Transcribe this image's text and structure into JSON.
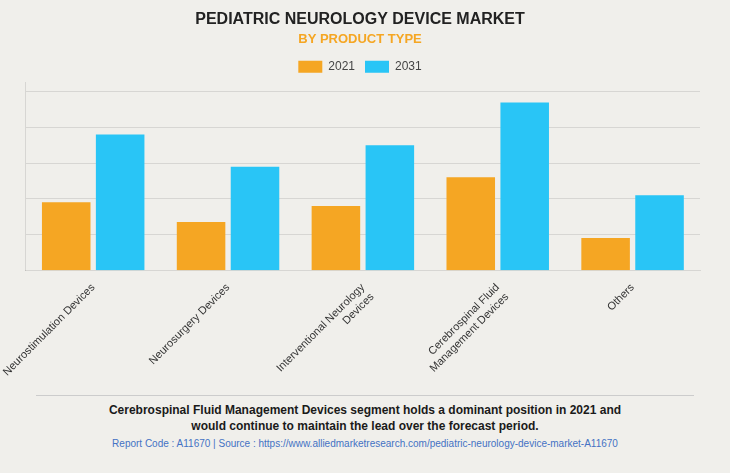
{
  "chart_data": {
    "type": "bar",
    "title": "PEDIATRIC NEUROLOGY DEVICE MARKET",
    "subtitle": "BY PRODUCT TYPE",
    "categories": [
      "Neurostimulation Devices",
      "Neurosurgery Devices",
      "Interventional Neurology\nDevices",
      "Cerebrospinal Fluid\nManagement Devices",
      "Others"
    ],
    "series": [
      {
        "name": "2021",
        "color": "#F5A623",
        "values": [
          0.38,
          0.27,
          0.36,
          0.52,
          0.18
        ]
      },
      {
        "name": "2031",
        "color": "#29C5F6",
        "values": [
          0.76,
          0.58,
          0.7,
          0.94,
          0.42
        ]
      }
    ],
    "ylim": [
      0,
      1.05
    ],
    "yticks": [
      0.2,
      0.4,
      0.6,
      0.8,
      1.0
    ],
    "grid": true,
    "tick_labels": "x",
    "legend": "top",
    "annotations": [
      "Cerebrospinal Fluid Management Devices segment holds a dominant position in 2021 and\nwould continue to maintain the lead over the forecast period.",
      "Report Code : A11670  |  Source : https://www.alliedmarketresearch.com/pediatric-neurology-device-market-A11670"
    ]
  }
}
